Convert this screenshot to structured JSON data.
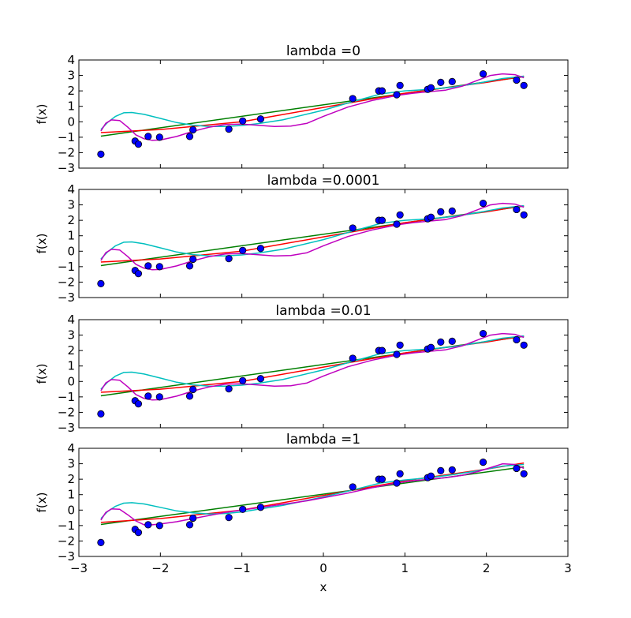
{
  "colors": {
    "points": "#0000ff",
    "deg1": "#007f00",
    "deg2": "#ff0000",
    "deg5": "#00bfbf",
    "deg9": "#bf00bf"
  },
  "chart_data": [
    {
      "type": "line",
      "title": "lambda =0",
      "xlabel": "",
      "ylabel": "f(x)",
      "xlim": [
        -3,
        3
      ],
      "ylim": [
        -3,
        4
      ],
      "grid": false,
      "x_ticks": [],
      "y_ticks": [
        "4",
        "3",
        "2",
        "1",
        "0",
        "−1",
        "−2",
        "−3"
      ],
      "points": {
        "x": [
          -2.73,
          -2.31,
          -2.27,
          -2.15,
          -2.01,
          -1.64,
          -1.6,
          -1.16,
          -0.99,
          -0.77,
          0.36,
          0.68,
          0.72,
          0.9,
          0.94,
          1.28,
          1.32,
          1.44,
          1.58,
          1.96,
          2.37,
          2.46
        ],
        "y": [
          -2.1,
          -1.25,
          -1.45,
          -0.95,
          -1.0,
          -0.95,
          -0.52,
          -0.48,
          0.05,
          0.18,
          1.5,
          2.0,
          2.0,
          1.75,
          2.35,
          2.1,
          2.2,
          2.55,
          2.6,
          3.1,
          2.7,
          2.35
        ]
      },
      "series": [
        {
          "x": [
            -2.73,
            2.46
          ],
          "y": [
            -0.93,
            2.92
          ]
        },
        {
          "x": [
            -2.73,
            -2.0,
            -1.0,
            0.0,
            1.0,
            2.0,
            2.46
          ],
          "y": [
            -0.7,
            -0.5,
            0.0,
            0.93,
            1.85,
            2.55,
            2.95
          ]
        },
        {
          "x": [
            -2.73,
            -2.65,
            -2.55,
            -2.45,
            -2.35,
            -2.2,
            -2.0,
            -1.8,
            -1.6,
            -1.4,
            -1.2,
            -1.0,
            -0.8,
            -0.5,
            0.0,
            0.36,
            0.7,
            1.0,
            1.3,
            1.6,
            1.9,
            2.2,
            2.46
          ],
          "y": [
            -0.5,
            -0.05,
            0.35,
            0.58,
            0.6,
            0.48,
            0.22,
            -0.05,
            -0.22,
            -0.3,
            -0.3,
            -0.24,
            -0.12,
            0.12,
            0.75,
            1.3,
            1.8,
            2.0,
            2.1,
            2.25,
            2.5,
            2.8,
            2.95
          ]
        },
        {
          "x": [
            -2.73,
            -2.67,
            -2.6,
            -2.5,
            -2.4,
            -2.3,
            -2.2,
            -2.1,
            -2.0,
            -1.8,
            -1.6,
            -1.4,
            -1.2,
            -1.0,
            -0.8,
            -0.6,
            -0.4,
            -0.2,
            0.0,
            0.3,
            0.6,
            0.9,
            1.1,
            1.3,
            1.5,
            1.7,
            1.9,
            2.05,
            2.2,
            2.35,
            2.46
          ],
          "y": [
            -0.6,
            -0.1,
            0.12,
            0.08,
            -0.35,
            -0.85,
            -1.1,
            -1.2,
            -1.18,
            -0.95,
            -0.62,
            -0.35,
            -0.18,
            -0.15,
            -0.23,
            -0.3,
            -0.28,
            -0.1,
            0.35,
            0.95,
            1.38,
            1.7,
            1.85,
            1.95,
            2.05,
            2.3,
            2.7,
            3.0,
            3.1,
            3.05,
            2.85
          ]
        }
      ]
    },
    {
      "type": "line",
      "title": "lambda =0.0001",
      "xlabel": "",
      "ylabel": "f(x)",
      "xlim": [
        -3,
        3
      ],
      "ylim": [
        -3,
        4
      ],
      "grid": false,
      "x_ticks": [],
      "y_ticks": [
        "4",
        "3",
        "2",
        "1",
        "0",
        "−1",
        "−2",
        "−3"
      ],
      "points": {
        "x": [
          -2.73,
          -2.31,
          -2.27,
          -2.15,
          -2.01,
          -1.64,
          -1.6,
          -1.16,
          -0.99,
          -0.77,
          0.36,
          0.68,
          0.72,
          0.9,
          0.94,
          1.28,
          1.32,
          1.44,
          1.58,
          1.96,
          2.37,
          2.46
        ],
        "y": [
          -2.1,
          -1.25,
          -1.45,
          -0.95,
          -1.0,
          -0.95,
          -0.52,
          -0.48,
          0.05,
          0.18,
          1.5,
          2.0,
          2.0,
          1.75,
          2.35,
          2.1,
          2.2,
          2.55,
          2.6,
          3.1,
          2.7,
          2.35
        ]
      },
      "series": [
        {
          "x": [
            -2.73,
            2.46
          ],
          "y": [
            -0.93,
            2.92
          ]
        },
        {
          "x": [
            -2.73,
            -2.0,
            -1.0,
            0.0,
            1.0,
            2.0,
            2.46
          ],
          "y": [
            -0.7,
            -0.5,
            0.0,
            0.93,
            1.85,
            2.55,
            2.95
          ]
        },
        {
          "x": [
            -2.73,
            -2.65,
            -2.55,
            -2.45,
            -2.35,
            -2.2,
            -2.0,
            -1.8,
            -1.6,
            -1.4,
            -1.2,
            -1.0,
            -0.8,
            -0.5,
            0.0,
            0.36,
            0.7,
            1.0,
            1.3,
            1.6,
            1.9,
            2.2,
            2.46
          ],
          "y": [
            -0.5,
            -0.05,
            0.35,
            0.58,
            0.6,
            0.48,
            0.22,
            -0.05,
            -0.22,
            -0.3,
            -0.3,
            -0.24,
            -0.12,
            0.12,
            0.75,
            1.3,
            1.8,
            2.0,
            2.1,
            2.25,
            2.5,
            2.8,
            2.95
          ]
        },
        {
          "x": [
            -2.73,
            -2.67,
            -2.6,
            -2.5,
            -2.4,
            -2.3,
            -2.2,
            -2.1,
            -2.0,
            -1.8,
            -1.6,
            -1.4,
            -1.2,
            -1.0,
            -0.8,
            -0.6,
            -0.4,
            -0.2,
            0.0,
            0.3,
            0.6,
            0.9,
            1.1,
            1.3,
            1.5,
            1.7,
            1.9,
            2.05,
            2.2,
            2.35,
            2.46
          ],
          "y": [
            -0.6,
            -0.1,
            0.12,
            0.08,
            -0.35,
            -0.85,
            -1.1,
            -1.2,
            -1.18,
            -0.95,
            -0.62,
            -0.35,
            -0.18,
            -0.15,
            -0.23,
            -0.3,
            -0.28,
            -0.1,
            0.35,
            0.95,
            1.38,
            1.7,
            1.85,
            1.95,
            2.05,
            2.3,
            2.7,
            3.0,
            3.1,
            3.05,
            2.85
          ]
        }
      ]
    },
    {
      "type": "line",
      "title": "lambda =0.01",
      "xlabel": "",
      "ylabel": "f(x)",
      "xlim": [
        -3,
        3
      ],
      "ylim": [
        -3,
        4
      ],
      "grid": false,
      "x_ticks": [],
      "y_ticks": [
        "4",
        "3",
        "2",
        "1",
        "0",
        "−1",
        "−2",
        "−3"
      ],
      "points": {
        "x": [
          -2.73,
          -2.31,
          -2.27,
          -2.15,
          -2.01,
          -1.64,
          -1.6,
          -1.16,
          -0.99,
          -0.77,
          0.36,
          0.68,
          0.72,
          0.9,
          0.94,
          1.28,
          1.32,
          1.44,
          1.58,
          1.96,
          2.37,
          2.46
        ],
        "y": [
          -2.1,
          -1.25,
          -1.45,
          -0.95,
          -1.0,
          -0.95,
          -0.52,
          -0.48,
          0.05,
          0.18,
          1.5,
          2.0,
          2.0,
          1.75,
          2.35,
          2.1,
          2.2,
          2.55,
          2.6,
          3.1,
          2.7,
          2.35
        ]
      },
      "series": [
        {
          "x": [
            -2.73,
            2.46
          ],
          "y": [
            -0.93,
            2.92
          ]
        },
        {
          "x": [
            -2.73,
            -2.0,
            -1.0,
            0.0,
            1.0,
            2.0,
            2.46
          ],
          "y": [
            -0.7,
            -0.5,
            0.0,
            0.93,
            1.85,
            2.55,
            2.95
          ]
        },
        {
          "x": [
            -2.73,
            -2.65,
            -2.55,
            -2.45,
            -2.35,
            -2.2,
            -2.0,
            -1.8,
            -1.6,
            -1.4,
            -1.2,
            -1.0,
            -0.8,
            -0.5,
            0.0,
            0.36,
            0.7,
            1.0,
            1.3,
            1.6,
            1.9,
            2.2,
            2.46
          ],
          "y": [
            -0.5,
            -0.05,
            0.35,
            0.58,
            0.6,
            0.48,
            0.22,
            -0.05,
            -0.22,
            -0.3,
            -0.3,
            -0.24,
            -0.12,
            0.12,
            0.75,
            1.3,
            1.8,
            2.0,
            2.1,
            2.25,
            2.5,
            2.8,
            2.95
          ]
        },
        {
          "x": [
            -2.73,
            -2.67,
            -2.6,
            -2.5,
            -2.4,
            -2.3,
            -2.2,
            -2.1,
            -2.0,
            -1.8,
            -1.6,
            -1.4,
            -1.2,
            -1.0,
            -0.8,
            -0.6,
            -0.4,
            -0.2,
            0.0,
            0.3,
            0.6,
            0.9,
            1.1,
            1.3,
            1.5,
            1.7,
            1.9,
            2.05,
            2.2,
            2.35,
            2.46
          ],
          "y": [
            -0.6,
            -0.1,
            0.12,
            0.08,
            -0.35,
            -0.85,
            -1.1,
            -1.2,
            -1.18,
            -0.95,
            -0.62,
            -0.35,
            -0.18,
            -0.15,
            -0.23,
            -0.3,
            -0.28,
            -0.1,
            0.35,
            0.95,
            1.38,
            1.7,
            1.85,
            1.95,
            2.05,
            2.3,
            2.7,
            3.0,
            3.1,
            3.05,
            2.85
          ]
        }
      ]
    },
    {
      "type": "line",
      "title": "lambda =1",
      "xlabel": "x",
      "ylabel": "f(x)",
      "xlim": [
        -3,
        3
      ],
      "ylim": [
        -3,
        4
      ],
      "grid": false,
      "x_ticks": [
        "−3",
        "−2",
        "−1",
        "0",
        "1",
        "2",
        "3"
      ],
      "y_ticks": [
        "4",
        "3",
        "2",
        "1",
        "0",
        "−1",
        "−2",
        "−3"
      ],
      "points": {
        "x": [
          -2.73,
          -2.31,
          -2.27,
          -2.15,
          -2.01,
          -1.64,
          -1.6,
          -1.16,
          -0.99,
          -0.77,
          0.36,
          0.68,
          0.72,
          0.9,
          0.94,
          1.28,
          1.32,
          1.44,
          1.58,
          1.96,
          2.37,
          2.46
        ],
        "y": [
          -2.1,
          -1.25,
          -1.45,
          -0.95,
          -1.0,
          -0.95,
          -0.52,
          -0.48,
          0.05,
          0.18,
          1.5,
          2.0,
          2.0,
          1.75,
          2.35,
          2.1,
          2.2,
          2.55,
          2.6,
          3.1,
          2.7,
          2.35
        ]
      },
      "series": [
        {
          "x": [
            -2.73,
            2.46
          ],
          "y": [
            -0.93,
            2.8
          ]
        },
        {
          "x": [
            -2.73,
            -2.0,
            -1.0,
            0.0,
            1.0,
            2.0,
            2.46
          ],
          "y": [
            -0.8,
            -0.55,
            0.0,
            0.95,
            1.9,
            2.65,
            3.05
          ]
        },
        {
          "x": [
            -2.73,
            -2.65,
            -2.55,
            -2.45,
            -2.35,
            -2.2,
            -2.0,
            -1.8,
            -1.6,
            -1.4,
            -1.2,
            -1.0,
            -0.8,
            -0.5,
            0.0,
            0.36,
            0.7,
            1.0,
            1.3,
            1.6,
            1.9,
            2.2,
            2.46
          ],
          "y": [
            -0.55,
            -0.1,
            0.25,
            0.45,
            0.48,
            0.4,
            0.18,
            -0.05,
            -0.18,
            -0.25,
            -0.22,
            -0.12,
            0.05,
            0.3,
            0.85,
            1.3,
            1.75,
            1.95,
            2.1,
            2.3,
            2.55,
            2.85,
            2.95
          ]
        },
        {
          "x": [
            -2.73,
            -2.67,
            -2.6,
            -2.5,
            -2.4,
            -2.3,
            -2.2,
            -2.1,
            -2.0,
            -1.8,
            -1.6,
            -1.4,
            -1.2,
            -1.0,
            -0.8,
            -0.6,
            -0.4,
            -0.2,
            0.0,
            0.3,
            0.6,
            0.9,
            1.1,
            1.3,
            1.5,
            1.7,
            1.9,
            2.05,
            2.2,
            2.35,
            2.46
          ],
          "y": [
            -0.65,
            -0.15,
            0.08,
            0.05,
            -0.3,
            -0.7,
            -0.95,
            -0.95,
            -0.9,
            -0.75,
            -0.55,
            -0.35,
            -0.15,
            0.0,
            0.15,
            0.3,
            0.45,
            0.6,
            0.8,
            1.1,
            1.45,
            1.75,
            1.9,
            2.0,
            2.1,
            2.25,
            2.5,
            2.75,
            3.0,
            2.95,
            2.7
          ]
        }
      ]
    }
  ]
}
